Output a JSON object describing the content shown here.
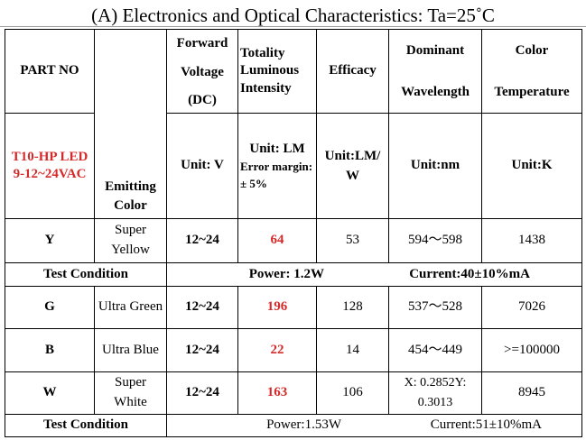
{
  "title": "(A) Electronics and Optical Characteristics: Ta=25˚C",
  "header": {
    "part_no": "PART NO",
    "part_name": "T10-HP LED 9-12~24VAC",
    "emitting_color": "Emitting Color",
    "forward_voltage": [
      "Forward",
      "Voltage",
      "(DC)"
    ],
    "forward_voltage_unit": "Unit: V",
    "luminous_intensity": "Totality Luminous Intensity",
    "luminous_unit": "Unit: LM",
    "luminous_error": "Error margin:± 5%",
    "efficacy": "Efficacy",
    "efficacy_unit": "Unit:LM/ W",
    "dominant": [
      "Dominant",
      "Wavelength"
    ],
    "dominant_unit": "Unit:nm",
    "color_temp": [
      "Color",
      "Temperature"
    ],
    "color_temp_unit": "Unit:K"
  },
  "rows": [
    {
      "part": "Y",
      "color": "Super Yellow",
      "voltage": "12~24",
      "lumen": "64",
      "efficacy": "53",
      "wavelength": "594～598",
      "temp": "1438"
    },
    {
      "part": "G",
      "color": "Ultra Green",
      "voltage": "12~24",
      "lumen": "196",
      "efficacy": "128",
      "wavelength": "537～528",
      "temp": "7026"
    },
    {
      "part": "B",
      "color": "Ultra Blue",
      "voltage": "12~24",
      "lumen": "22",
      "efficacy": "14",
      "wavelength": "454～449",
      "temp": ">=100000"
    },
    {
      "part": "W",
      "color": "Super White",
      "voltage": "12~24",
      "lumen": "163",
      "efficacy": "106",
      "wavelength": "X: 0.2852Y: 0.3013",
      "temp": "8945"
    }
  ],
  "test_conditions": [
    {
      "label": "Test Condition",
      "power": "Power: 1.2W",
      "current": "Current:40±10%mA"
    },
    {
      "label": "Test Condition",
      "power": "Power:1.53W",
      "current": "Current:51±10%mA"
    }
  ],
  "colors": {
    "highlight": "#d42a2a"
  }
}
